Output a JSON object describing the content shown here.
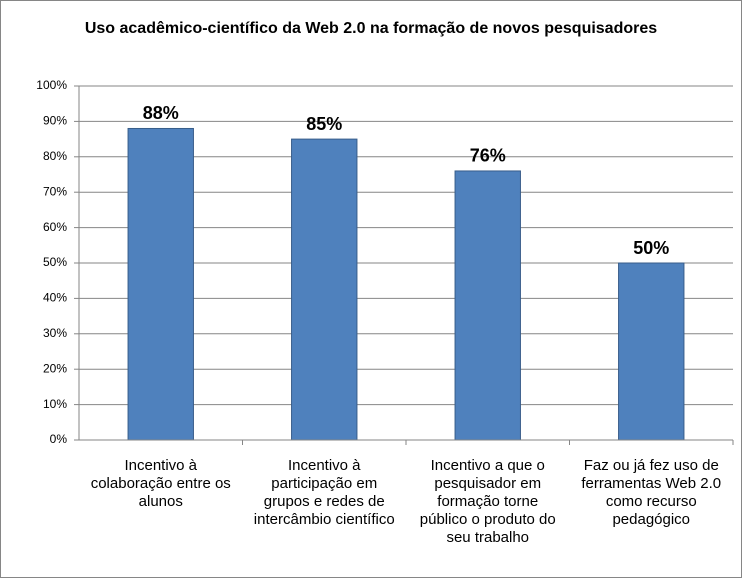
{
  "chart_data": {
    "type": "bar",
    "title": "Uso acadêmico-científico da Web 2.0 na formação de novos pesquisadores",
    "categories": [
      "Incentivo à colaboração entre os alunos",
      "Incentivo à participação em grupos e redes de intercâmbio científico",
      "Incentivo a que o pesquisador em formação torne público o produto do seu trabalho",
      "Faz ou já fez uso de ferramentas Web 2.0 como recurso pedagógico"
    ],
    "values": [
      88,
      85,
      76,
      50
    ],
    "value_labels": [
      "88%",
      "85%",
      "76%",
      "50%"
    ],
    "color": "#4f81bd",
    "ylim": [
      0,
      100
    ],
    "yticks": [
      {
        "value": 0,
        "label": "0%"
      },
      {
        "value": 10,
        "label": "10%"
      },
      {
        "value": 20,
        "label": "20%"
      },
      {
        "value": 30,
        "label": "30%"
      },
      {
        "value": 40,
        "label": "40%"
      },
      {
        "value": 50,
        "label": "50%"
      },
      {
        "value": 60,
        "label": "60%"
      },
      {
        "value": 70,
        "label": "70%"
      },
      {
        "value": 80,
        "label": "80%"
      },
      {
        "value": 90,
        "label": "90%"
      },
      {
        "value": 100,
        "label": "100%"
      }
    ],
    "grid": true
  }
}
